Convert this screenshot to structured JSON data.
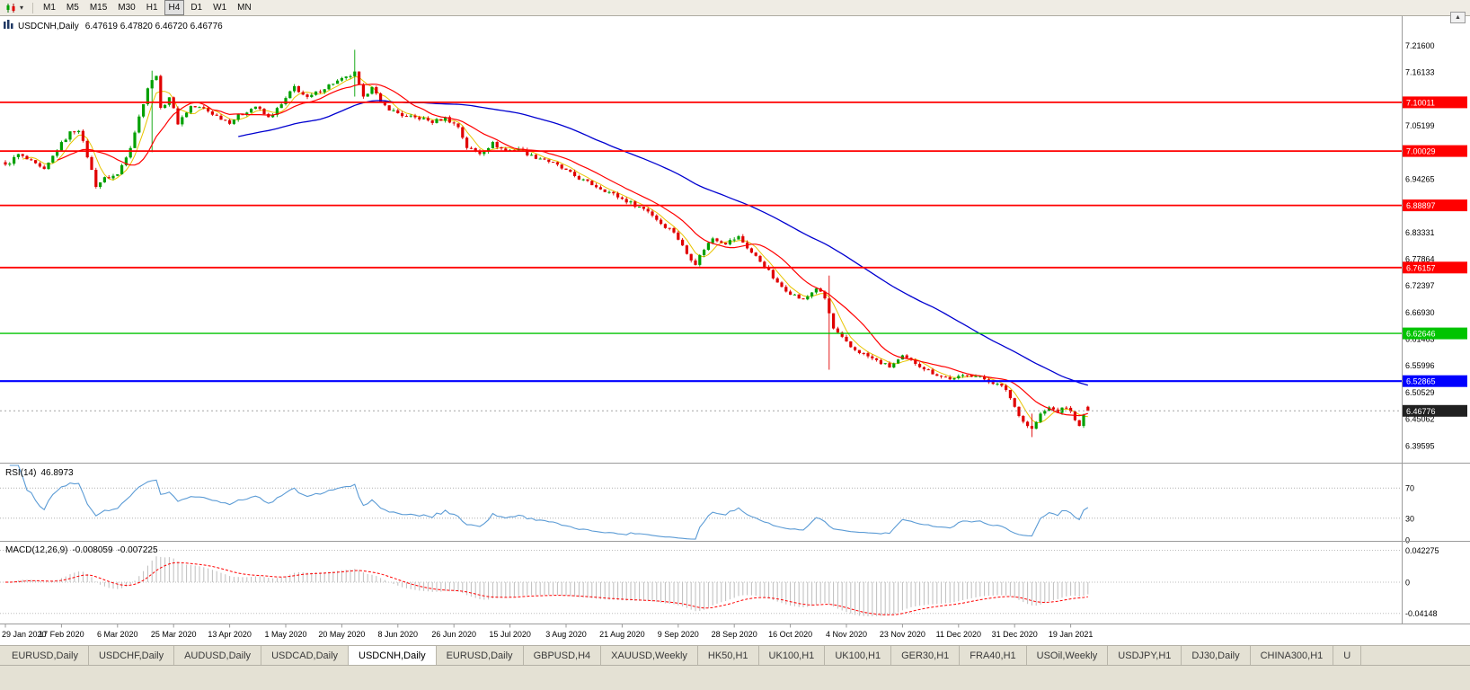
{
  "icons": {
    "chevron_down": "▾",
    "up_arrow": "▲"
  },
  "toolbar": {
    "timeframes": [
      "M1",
      "M5",
      "M15",
      "M30",
      "H1",
      "H4",
      "D1",
      "W1",
      "MN"
    ],
    "active_timeframe": "H4"
  },
  "window": {
    "title": "USDCNH,Daily",
    "ohlc": "6.47619 6.47820 6.46720 6.46776"
  },
  "price_axis": {
    "grid_labels": [
      "7.21600",
      "7.16133",
      "7.05199",
      "6.94265",
      "6.83331",
      "6.77864",
      "6.72397",
      "6.66930",
      "6.61463",
      "6.55996",
      "6.50529",
      "6.45062",
      "6.39595"
    ]
  },
  "levels": [
    {
      "label": "7.10011",
      "price": 7.10011,
      "color": "#FF0000",
      "width": 1.8
    },
    {
      "label": "7.00029",
      "price": 7.00029,
      "color": "#FF0000",
      "width": 1.8
    },
    {
      "label": "6.88897",
      "price": 6.88897,
      "color": "#FF0000",
      "width": 1.8
    },
    {
      "label": "6.76157",
      "price": 6.76157,
      "color": "#FF0000",
      "width": 1.8
    },
    {
      "label": "6.62646",
      "price": 6.62646,
      "color": "#00C400",
      "width": 1.4
    },
    {
      "label": "6.52865",
      "price": 6.52865,
      "color": "#0000FF",
      "width": 2.2
    }
  ],
  "current_price": {
    "label": "6.46776",
    "price": 6.46776,
    "tag_color": "#202020",
    "line_color": "#a6a6a6"
  },
  "time_axis": {
    "candles_per_label": 13,
    "labels": [
      "29 Jan 2020",
      "17 Feb 2020",
      "6 Mar 2020",
      "25 Mar 2020",
      "13 Apr 2020",
      "1 May 2020",
      "20 May 2020",
      "8 Jun 2020",
      "26 Jun 2020",
      "15 Jul 2020",
      "3 Aug 2020",
      "21 Aug 2020",
      "9 Sep 2020",
      "28 Sep 2020",
      "16 Oct 2020",
      "4 Nov 2020",
      "23 Nov 2020",
      "11 Dec 2020",
      "31 Dec 2020",
      "19 Jan 2021"
    ]
  },
  "rsi_panel": {
    "title": "RSI(14)",
    "value": "46.8973",
    "period": 14,
    "axis_labels": [
      "70",
      "30",
      "0"
    ],
    "line_color": "#5b9bd5"
  },
  "macd_panel": {
    "title": "MACD(12,26,9)",
    "values": [
      "-0.008059",
      "-0.007225"
    ],
    "fast": 12,
    "slow": 26,
    "signal": 9,
    "axis_labels": [
      "0.042275",
      "0",
      "-0.04148"
    ],
    "histogram_color": "#bdbdbd",
    "signal_color": "#ff0000"
  },
  "tabs": {
    "active_index": 4,
    "items": [
      "EURUSD,Daily",
      "USDCHF,Daily",
      "AUDUSD,Daily",
      "USDCAD,Daily",
      "USDCNH,Daily",
      "EURUSD,Daily",
      "GBPUSD,H4",
      "XAUUSD,Weekly",
      "HK50,H1",
      "UK100,H1",
      "UK100,H1",
      "GER30,H1",
      "FRA40,H1",
      "USOil,Weekly",
      "USDJPY,H1",
      "DJ30,Daily",
      "CHINA300,H1",
      "U"
    ]
  },
  "chart_data": {
    "type": "candlestick",
    "symbol": "USDCNH",
    "timeframe": "Daily",
    "n_candles": 252,
    "price_axis_range": [
      6.378,
      7.24
    ],
    "last_ohlc": {
      "open": 6.47619,
      "high": 6.4782,
      "low": 6.4672,
      "close": 6.46776
    },
    "candle_up_color": "#00A000",
    "candle_down_color": "#E00000",
    "moving_averages": [
      {
        "period": 5,
        "color": "#E8C400"
      },
      {
        "period": 13,
        "color": "#FF0000"
      },
      {
        "period": 55,
        "color": "#0000D0"
      }
    ],
    "close_waypoints": [
      [
        0,
        6.97
      ],
      [
        3,
        6.993
      ],
      [
        6,
        6.978
      ],
      [
        9,
        6.96
      ],
      [
        12,
        7.004
      ],
      [
        15,
        7.038
      ],
      [
        17,
        7.045
      ],
      [
        19,
        6.99
      ],
      [
        21,
        6.93
      ],
      [
        23,
        6.944
      ],
      [
        26,
        6.952
      ],
      [
        29,
        7.01
      ],
      [
        31,
        7.07
      ],
      [
        33,
        7.13
      ],
      [
        35,
        7.158
      ],
      [
        36,
        7.085
      ],
      [
        38,
        7.112
      ],
      [
        40,
        7.058
      ],
      [
        43,
        7.092
      ],
      [
        46,
        7.087
      ],
      [
        49,
        7.072
      ],
      [
        52,
        7.06
      ],
      [
        55,
        7.078
      ],
      [
        58,
        7.092
      ],
      [
        61,
        7.068
      ],
      [
        64,
        7.095
      ],
      [
        67,
        7.132
      ],
      [
        70,
        7.108
      ],
      [
        73,
        7.125
      ],
      [
        76,
        7.14
      ],
      [
        79,
        7.15
      ],
      [
        81,
        7.16
      ],
      [
        83,
        7.108
      ],
      [
        85,
        7.135
      ],
      [
        87,
        7.098
      ],
      [
        90,
        7.082
      ],
      [
        93,
        7.07
      ],
      [
        96,
        7.068
      ],
      [
        99,
        7.06
      ],
      [
        102,
        7.068
      ],
      [
        105,
        7.05
      ],
      [
        107,
        7.008
      ],
      [
        110,
        6.996
      ],
      [
        113,
        7.016
      ],
      [
        116,
        7.0
      ],
      [
        119,
        7.006
      ],
      [
        122,
        6.99
      ],
      [
        125,
        6.984
      ],
      [
        128,
        6.97
      ],
      [
        131,
        6.954
      ],
      [
        134,
        6.94
      ],
      [
        137,
        6.928
      ],
      [
        140,
        6.916
      ],
      [
        143,
        6.902
      ],
      [
        146,
        6.89
      ],
      [
        149,
        6.878
      ],
      [
        152,
        6.852
      ],
      [
        155,
        6.835
      ],
      [
        158,
        6.79
      ],
      [
        160,
        6.77
      ],
      [
        162,
        6.8
      ],
      [
        164,
        6.822
      ],
      [
        167,
        6.812
      ],
      [
        170,
        6.824
      ],
      [
        173,
        6.792
      ],
      [
        176,
        6.766
      ],
      [
        179,
        6.728
      ],
      [
        182,
        6.71
      ],
      [
        185,
        6.694
      ],
      [
        188,
        6.72
      ],
      [
        190,
        6.698
      ],
      [
        192,
        6.636
      ],
      [
        194,
        6.616
      ],
      [
        196,
        6.598
      ],
      [
        199,
        6.584
      ],
      [
        202,
        6.57
      ],
      [
        205,
        6.558
      ],
      [
        208,
        6.578
      ],
      [
        211,
        6.566
      ],
      [
        214,
        6.55
      ],
      [
        217,
        6.538
      ],
      [
        220,
        6.532
      ],
      [
        223,
        6.544
      ],
      [
        226,
        6.536
      ],
      [
        229,
        6.526
      ],
      [
        232,
        6.512
      ],
      [
        234,
        6.476
      ],
      [
        236,
        6.446
      ],
      [
        238,
        6.43
      ],
      [
        240,
        6.46
      ],
      [
        242,
        6.474
      ],
      [
        244,
        6.466
      ],
      [
        246,
        6.476
      ],
      [
        248,
        6.452
      ],
      [
        249,
        6.434
      ],
      [
        250,
        6.458
      ],
      [
        251,
        6.468
      ]
    ],
    "wick_events": [
      [
        34,
        7.165,
        6.998
      ],
      [
        81,
        7.208,
        7.112
      ],
      [
        191,
        6.745,
        6.552
      ],
      [
        238,
        6.462,
        6.414
      ]
    ]
  }
}
